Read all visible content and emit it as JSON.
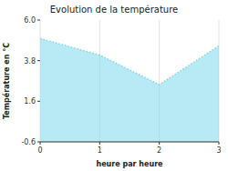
{
  "chart_data": {
    "type": "area",
    "title": "Evolution de la température",
    "x_label": "heure par heure",
    "y_label": "Température en °C",
    "x": [
      0,
      1,
      2,
      3
    ],
    "values": [
      5.0,
      4.1,
      2.5,
      4.6
    ],
    "xlim": [
      0,
      3
    ],
    "ylim": [
      -0.6,
      6.0
    ],
    "xticks": [
      0,
      1,
      2,
      3
    ],
    "yticks": [
      -0.6,
      1.6,
      3.8,
      {
        "value": 6.0,
        "label": "6.0"
      }
    ],
    "color": "#7dd8ef",
    "line_style": "dotted",
    "grid": true
  }
}
